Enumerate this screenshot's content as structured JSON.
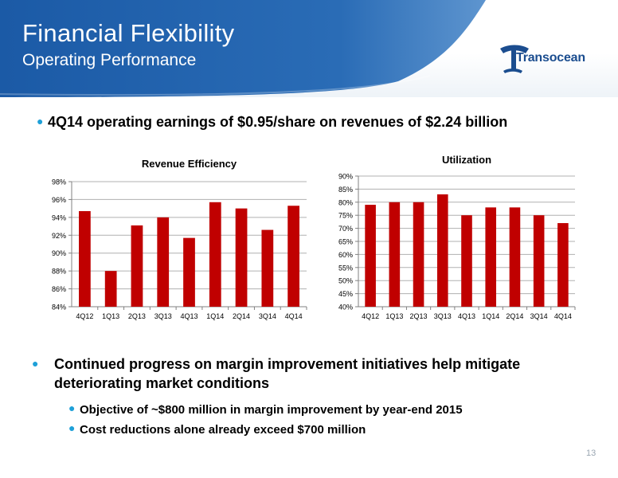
{
  "slide": {
    "title": "Financial Flexibility",
    "subtitle": "Operating Performance",
    "logo_text": "Transocean",
    "page_number": "13"
  },
  "bullets": {
    "top": "4Q14 operating earnings of $0.95/share on revenues of $2.24 billion",
    "main": "Continued progress on margin improvement initiatives help mitigate deteriorating market conditions",
    "sub": [
      "Objective of ~$800 million in margin improvement by year-end 2015",
      "Cost reductions alone already exceed $700 million"
    ]
  },
  "colors": {
    "banner": "#1b5aa6",
    "bar": "#c00000",
    "bullet": "#1ea0d8"
  },
  "chart_data": [
    {
      "type": "bar",
      "title": "Revenue Efficiency",
      "categories": [
        "4Q12",
        "1Q13",
        "2Q13",
        "3Q13",
        "4Q13",
        "1Q14",
        "2Q14",
        "3Q14",
        "4Q14"
      ],
      "values": [
        94.7,
        88.0,
        93.1,
        94.0,
        91.7,
        95.7,
        95.0,
        92.6,
        95.3
      ],
      "ylim": [
        84,
        98
      ],
      "yticks": [
        "84%",
        "86%",
        "88%",
        "90%",
        "92%",
        "94%",
        "96%",
        "98%"
      ],
      "ytick_values": [
        84,
        86,
        88,
        90,
        92,
        94,
        96,
        98
      ],
      "grid": true,
      "legend": "none"
    },
    {
      "type": "bar",
      "title": "Utilization",
      "categories": [
        "4Q12",
        "1Q13",
        "2Q13",
        "3Q13",
        "4Q13",
        "1Q14",
        "2Q14",
        "3Q14",
        "4Q14"
      ],
      "values": [
        79,
        80,
        80,
        83,
        75,
        78,
        78,
        75,
        72
      ],
      "ylim": [
        40,
        90
      ],
      "yticks": [
        "40%",
        "45%",
        "50%",
        "55%",
        "60%",
        "65%",
        "70%",
        "75%",
        "80%",
        "85%",
        "90%"
      ],
      "ytick_values": [
        40,
        45,
        50,
        55,
        60,
        65,
        70,
        75,
        80,
        85,
        90
      ],
      "grid": true,
      "legend": "none"
    }
  ]
}
